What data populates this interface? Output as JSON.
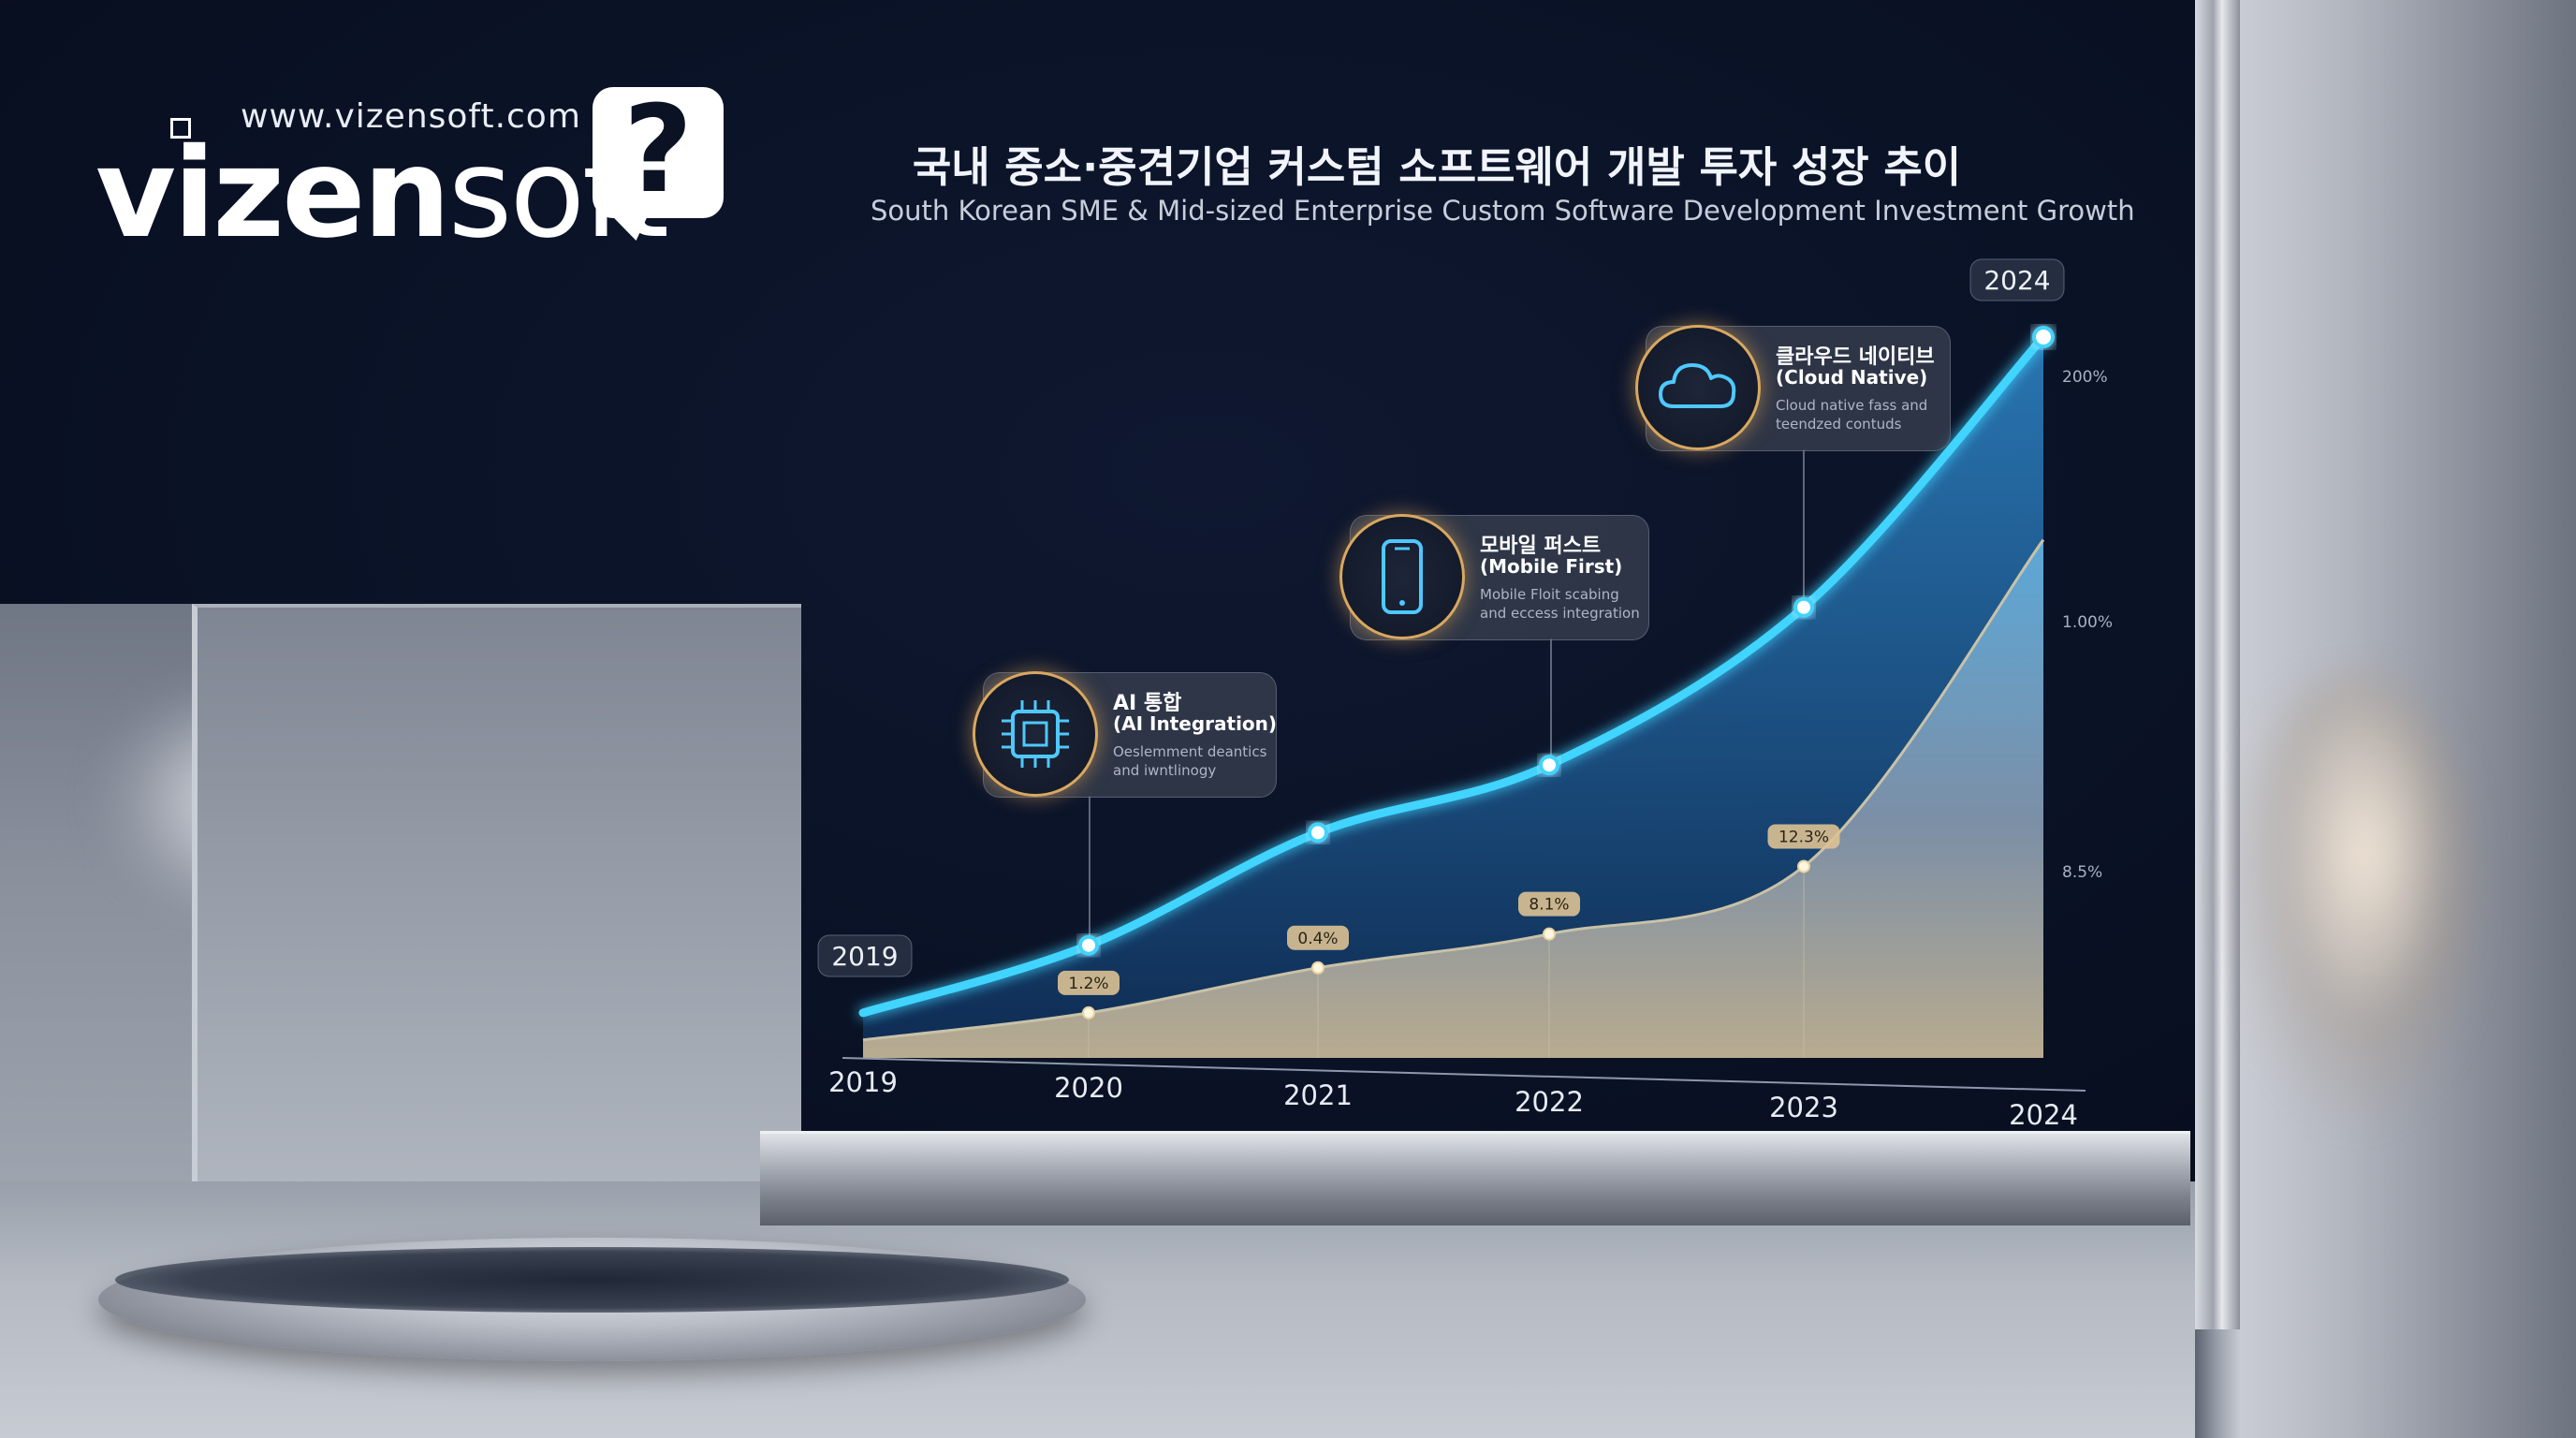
{
  "brand": {
    "url": "www.vizensoft.com",
    "logo_bold": "vizen",
    "logo_light": "soft",
    "badge": "?"
  },
  "chart_data": {
    "type": "area",
    "title": "국내 중소·중견기업 커스텀 소프트웨어 개발 투자 성장 추이",
    "subtitle": "South Korean SME & Mid-sized Enterprise Custom Software Development Investment Growth",
    "x": [
      "2019",
      "2020",
      "2021",
      "2022",
      "2023",
      "2024"
    ],
    "x_tick_labels": [
      "2019",
      "2020",
      "2021",
      "2022",
      "2023",
      "2024"
    ],
    "y_tick_labels": [
      "200%",
      "1.00%",
      "8.5%"
    ],
    "series": [
      {
        "name": "",
        "values": [
          0.2,
          0.5,
          1.0,
          1.3,
          2.0,
          3.2
        ],
        "color": "#3fd4ff",
        "start_label": "2019",
        "end_label": "2024"
      },
      {
        "name": "",
        "values": [
          0.08,
          0.2,
          0.4,
          0.55,
          0.85,
          2.3
        ],
        "color": "#c9c2a8",
        "point_labels": [
          "",
          "1.2%",
          "0.4%",
          "8.1%",
          "12.3%",
          ""
        ]
      }
    ],
    "annotations": [
      {
        "x": "2020",
        "icon": "chip-icon",
        "label_ko": "AI 통합",
        "label_en": "(AI Integration)",
        "desc": [
          "Oeslemment deantics",
          "and iwntlinogy"
        ]
      },
      {
        "x": "2022",
        "icon": "phone-icon",
        "label_ko": "모바일 퍼스트",
        "label_en": "(Mobile First)",
        "desc": [
          "Mobile Floit scabing",
          "and eccess integration"
        ]
      },
      {
        "x": "2023",
        "icon": "cloud-icon",
        "label_ko": "클라우드 네이티브",
        "label_en": "(Cloud Native)",
        "desc": [
          "Cloud native fass and",
          "teendzed contuds"
        ]
      }
    ],
    "colors": {
      "line": "#3fd4ff",
      "accent_ring": "#d9a85f",
      "label_pill": "#d6b98a"
    },
    "grid": false,
    "legend": "none"
  }
}
